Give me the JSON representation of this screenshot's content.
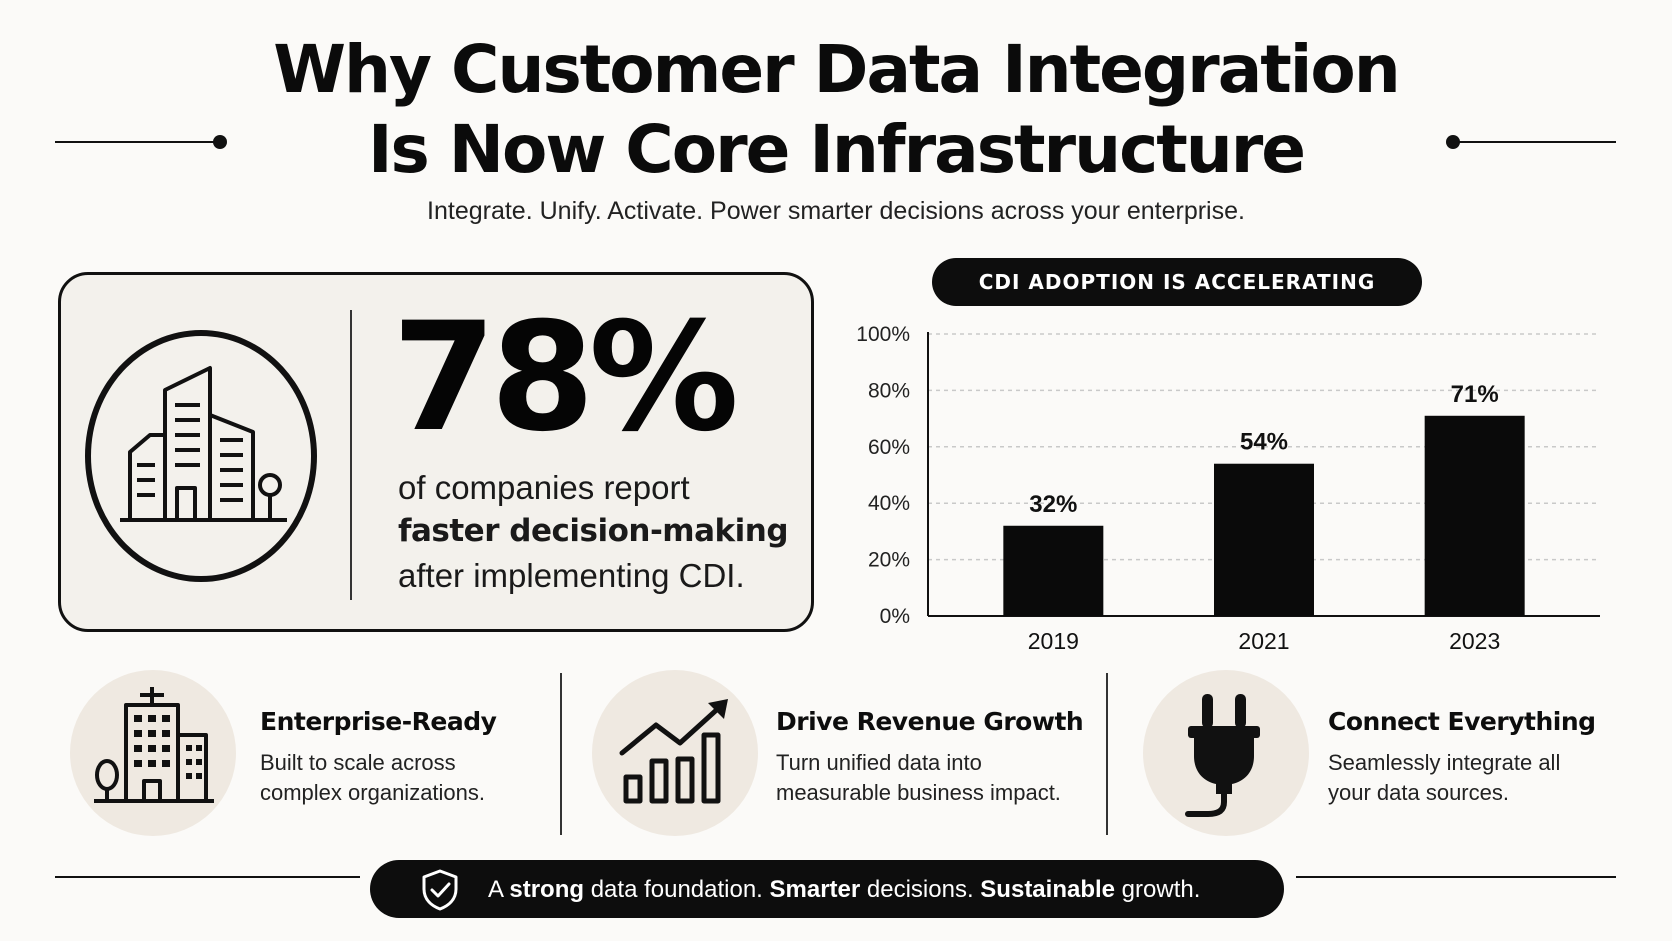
{
  "title": {
    "line1": "Why Customer Data Integration",
    "line2": "Is Now Core Infrastructure"
  },
  "subtitle": "Integrate. Unify. Activate. Power smarter decisions across your enterprise.",
  "stat": {
    "number": "78%",
    "line1": "of companies report",
    "line2": "faster decision-making",
    "line3": "after implementing CDI.",
    "icon": "city-buildings-icon"
  },
  "chart_heading": "CDI ADOPTION IS ACCELERATING",
  "chart_data": {
    "type": "bar",
    "title": "CDI ADOPTION IS ACCELERATING",
    "categories": [
      "2019",
      "2021",
      "2023"
    ],
    "values": [
      32,
      54,
      71
    ],
    "value_labels": [
      "32%",
      "54%",
      "71%"
    ],
    "ylim": [
      0,
      100
    ],
    "yticks": [
      "0%",
      "20%",
      "40%",
      "60%",
      "80%",
      "100%"
    ],
    "ytick_values": [
      0,
      20,
      40,
      60,
      80,
      100
    ],
    "grid": true,
    "bar_color": "#0a0a0a"
  },
  "features": [
    {
      "title": "Enterprise-Ready",
      "desc1": "Built to scale across",
      "desc2": "complex organizations.",
      "icon": "office-building-icon"
    },
    {
      "title": "Drive Revenue Growth",
      "desc1": "Turn unified data into",
      "desc2": "measurable business impact.",
      "icon": "growth-chart-icon"
    },
    {
      "title": "Connect Everything",
      "desc1": "Seamlessly integrate all",
      "desc2": "your data sources.",
      "icon": "plug-icon"
    }
  ],
  "footer": {
    "icon": "shield-check-icon",
    "p1": "A ",
    "b1": "strong",
    "p2": " data foundation. ",
    "b2": "Smarter",
    "p3": " decisions. ",
    "b3": "Sustainable",
    "p4": " growth."
  },
  "colors": {
    "background": "#fbfaf8",
    "ink": "#0d0d0d",
    "card": "#f3f1ec",
    "icon_circle": "#efe9e1"
  }
}
